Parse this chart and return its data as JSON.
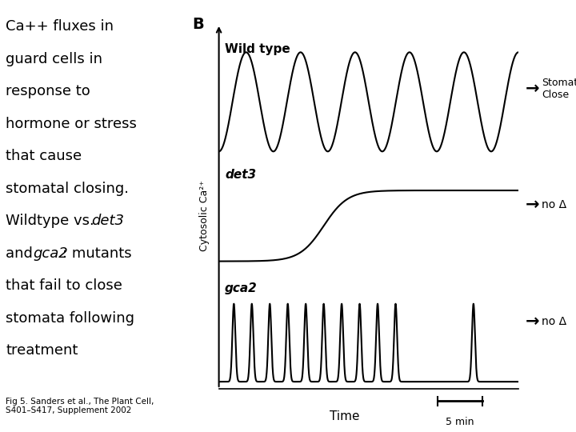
{
  "bg_color": "#ffffff",
  "title_label": "B",
  "wildtype_label": "Wild type",
  "det3_label": "det3",
  "gca2_label": "gca2",
  "ylabel": "Cytosolic Ca²⁺",
  "xlabel": "Time",
  "scale_label": "5 min",
  "stomata_close_text": "Stomata\nClose",
  "no_delta_text": "no Δ",
  "left_text_lines": [
    "Ca++ fluxes in",
    "guard cells in",
    "response to",
    "hormone or stress",
    "that cause",
    "stomatal closing."
  ],
  "citation": "Fig 5. Sanders et al., The Plant Cell,\nS401–S417, Supplement 2002",
  "line_color": "#000000",
  "text_color": "#000000"
}
